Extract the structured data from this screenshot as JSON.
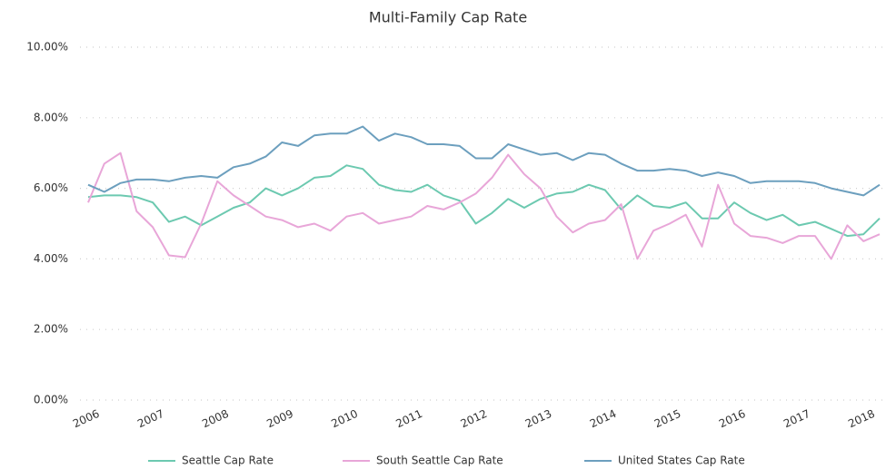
{
  "chart_data": {
    "type": "line",
    "title": "Multi-Family Cap Rate",
    "categories": [
      "2006",
      null,
      null,
      null,
      "2007",
      null,
      null,
      null,
      "2008",
      null,
      null,
      null,
      "2009",
      null,
      null,
      null,
      "2010",
      null,
      null,
      null,
      "2011",
      null,
      null,
      null,
      "2012",
      null,
      null,
      null,
      "2013",
      null,
      null,
      null,
      "2014",
      null,
      null,
      null,
      "2015",
      null,
      null,
      null,
      "2016",
      null,
      null,
      null,
      "2017",
      null,
      null,
      null,
      "2018",
      null
    ],
    "series": [
      {
        "name": "Seattle Cap Rate",
        "color": "#6cc9b0",
        "values": [
          5.75,
          5.8,
          5.8,
          5.75,
          5.6,
          5.05,
          5.2,
          4.95,
          5.2,
          5.45,
          5.6,
          6.0,
          5.8,
          6.0,
          6.3,
          6.35,
          6.65,
          6.55,
          6.1,
          5.95,
          5.9,
          6.1,
          5.8,
          5.65,
          5.0,
          5.3,
          5.7,
          5.45,
          5.7,
          5.85,
          5.9,
          6.1,
          5.95,
          5.4,
          5.8,
          5.5,
          5.45,
          5.6,
          5.15,
          5.15,
          5.6,
          5.3,
          5.1,
          5.25,
          4.95,
          5.05,
          4.85,
          4.65,
          4.7,
          5.15
        ]
      },
      {
        "name": "South Seattle Cap Rate",
        "color": "#e8a6d8",
        "values": [
          5.6,
          6.7,
          7.0,
          5.35,
          4.9,
          4.1,
          4.05,
          5.0,
          6.2,
          5.8,
          5.5,
          5.2,
          5.1,
          4.9,
          5.0,
          4.8,
          5.2,
          5.3,
          5.0,
          5.1,
          5.2,
          5.5,
          5.4,
          5.6,
          5.85,
          6.3,
          6.95,
          6.4,
          6.0,
          5.2,
          4.75,
          5.0,
          5.1,
          5.55,
          4.0,
          4.8,
          5.0,
          5.25,
          4.35,
          6.1,
          5.0,
          4.65,
          4.6,
          4.45,
          4.65,
          4.65,
          4.0,
          4.95,
          4.5,
          4.7
        ]
      },
      {
        "name": "United States Cap Rate",
        "color": "#6c9fbe",
        "values": [
          6.1,
          5.9,
          6.15,
          6.25,
          6.25,
          6.2,
          6.3,
          6.35,
          6.3,
          6.6,
          6.7,
          6.9,
          7.3,
          7.2,
          7.5,
          7.55,
          7.55,
          7.75,
          7.35,
          7.55,
          7.45,
          7.25,
          7.25,
          7.2,
          6.85,
          6.85,
          7.25,
          7.1,
          6.95,
          7.0,
          6.8,
          7.0,
          6.95,
          6.7,
          6.5,
          6.5,
          6.55,
          6.5,
          6.35,
          6.45,
          6.35,
          6.15,
          6.2,
          6.2,
          6.2,
          6.15,
          6.0,
          5.9,
          5.8,
          6.1
        ]
      }
    ],
    "ylim": [
      0,
      10
    ],
    "yticks": [
      {
        "value": 0,
        "label": "0.00%"
      },
      {
        "value": 2,
        "label": "2.00%"
      },
      {
        "value": 4,
        "label": "4.00%"
      },
      {
        "value": 6,
        "label": "6.00%"
      },
      {
        "value": 8,
        "label": "8.00%"
      },
      {
        "value": 10,
        "label": "10.00%"
      }
    ],
    "grid": true,
    "legend": "bottom"
  }
}
